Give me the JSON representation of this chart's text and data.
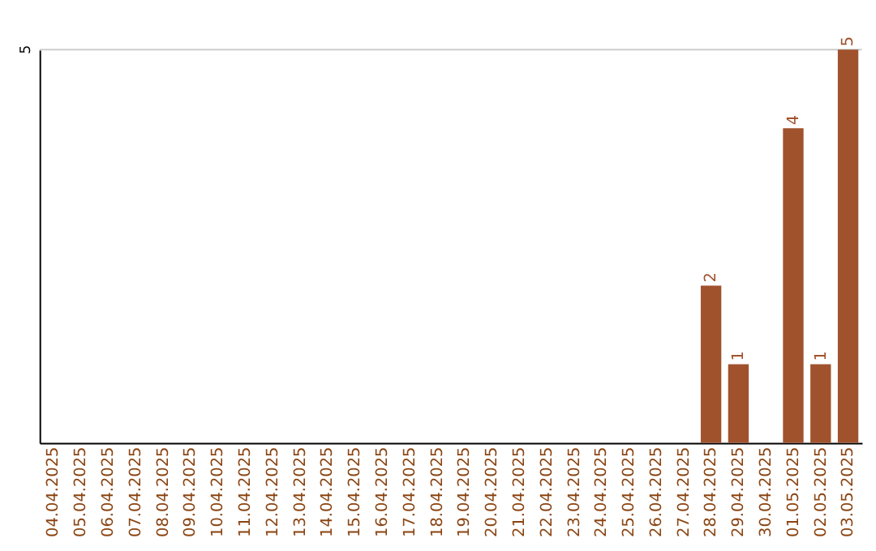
{
  "chart_data": {
    "type": "bar",
    "categories": [
      "04.04.2025",
      "05.04.2025",
      "06.04.2025",
      "07.04.2025",
      "08.04.2025",
      "09.04.2025",
      "10.04.2025",
      "11.04.2025",
      "12.04.2025",
      "13.04.2025",
      "14.04.2025",
      "15.04.2025",
      "16.04.2025",
      "17.04.2025",
      "18.04.2025",
      "19.04.2025",
      "20.04.2025",
      "21.04.2025",
      "22.04.2025",
      "23.04.2025",
      "24.04.2025",
      "25.04.2025",
      "26.04.2025",
      "27.04.2025",
      "28.04.2025",
      "29.04.2025",
      "30.04.2025",
      "01.05.2025",
      "02.05.2025",
      "03.05.2025"
    ],
    "values": [
      null,
      null,
      null,
      null,
      null,
      null,
      null,
      null,
      null,
      null,
      null,
      null,
      null,
      null,
      null,
      null,
      null,
      null,
      null,
      null,
      null,
      null,
      null,
      null,
      2,
      1,
      null,
      4,
      1,
      5
    ],
    "value_labels": [
      null,
      null,
      null,
      null,
      null,
      null,
      null,
      null,
      null,
      null,
      null,
      null,
      null,
      null,
      null,
      null,
      null,
      null,
      null,
      null,
      null,
      null,
      null,
      null,
      "2",
      "1",
      null,
      "4",
      "1",
      "5"
    ],
    "color": "#a0522d",
    "ylim": [
      0,
      5
    ],
    "ref_lines": [
      {
        "axis": "y",
        "value": 5,
        "label": "5",
        "color": "#cccccc"
      }
    ]
  }
}
